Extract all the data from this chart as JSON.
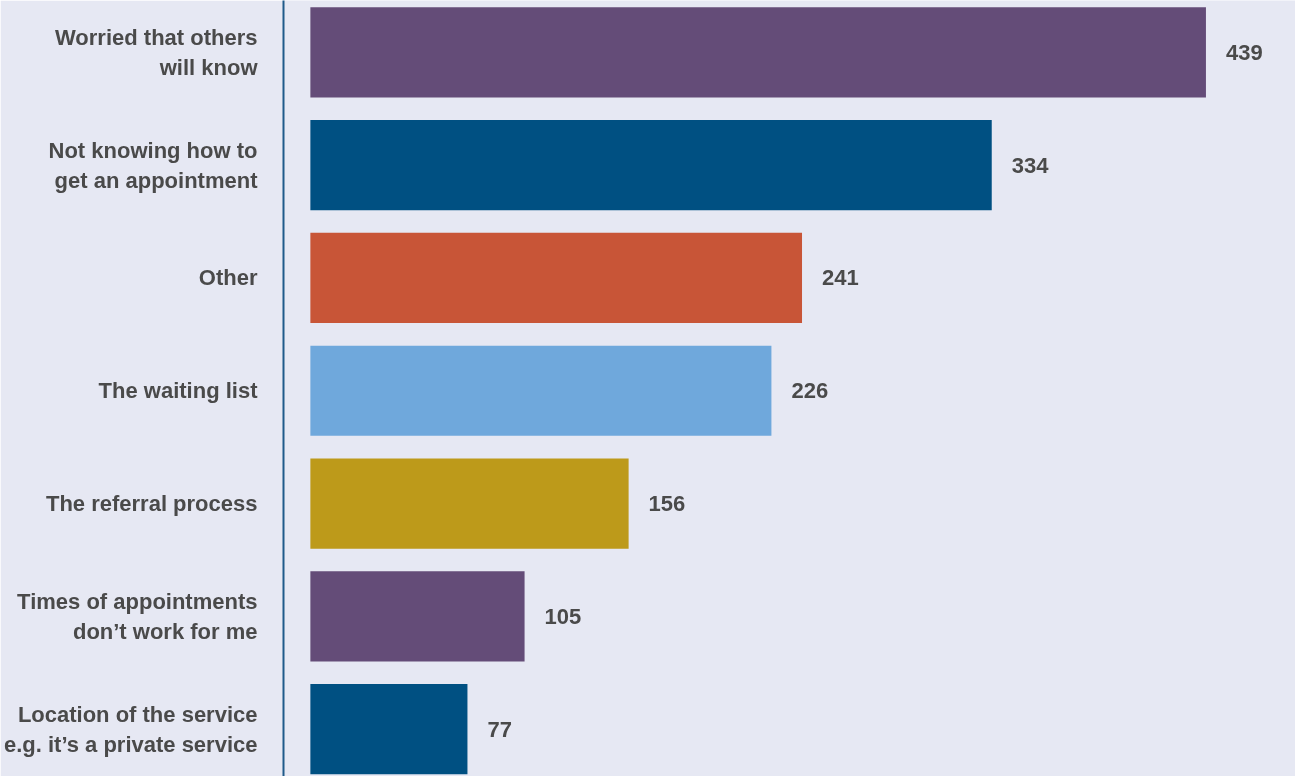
{
  "chart_data": {
    "type": "bar",
    "orientation": "horizontal",
    "categories": [
      "Worried that others\nwill know",
      "Not knowing how to\nget an appointment",
      "Other",
      "The waiting list",
      "The referral process",
      "Times of appointments\ndon’t work for me",
      "Location of the service\ne.g. it’s a private service"
    ],
    "values": [
      439,
      334,
      241,
      226,
      156,
      105,
      77
    ],
    "colors": [
      "#644c78",
      "#005082",
      "#c85537",
      "#6fa8dc",
      "#bd9a1a",
      "#644c78",
      "#005082"
    ],
    "data_labels": true,
    "grid": false,
    "tick_labels": "y"
  }
}
